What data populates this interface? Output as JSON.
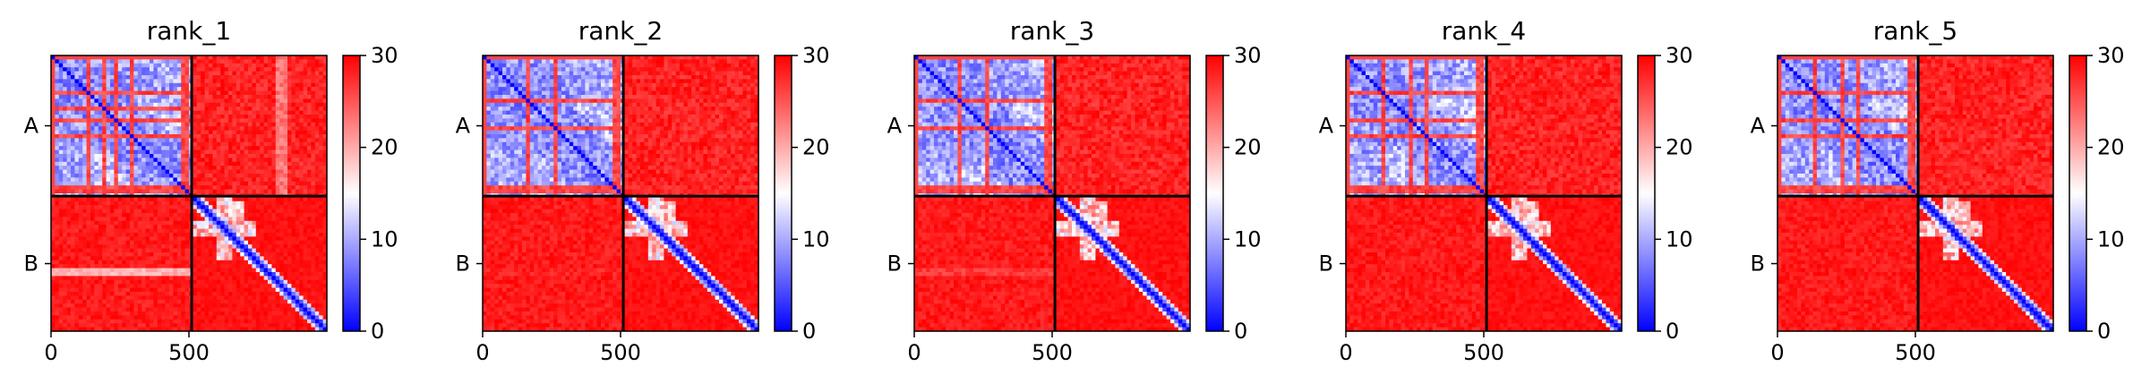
{
  "chart_data": [
    {
      "type": "heatmap",
      "title": "rank_1",
      "x_ticks": [
        "0",
        "500"
      ],
      "x_tick_values": [
        0,
        500
      ],
      "y_chains": [
        "A",
        "B"
      ],
      "xlim": [
        0,
        1000
      ],
      "ylim": [
        0,
        1000
      ],
      "chain_boundary": 510,
      "colorbar": {
        "min": 0,
        "max": 30,
        "ticks": [
          "0",
          "10",
          "20",
          "30"
        ],
        "tick_values": [
          0,
          10,
          20,
          30
        ],
        "colormap": "bwr"
      },
      "features": {
        "a_stripes": [
          0.25,
          0.36,
          0.45,
          0.56,
          0.93
        ],
        "off_diag_bands": [
          0.62,
          0.66
        ],
        "b_band_row": 0.55,
        "b_band_strength": 0.85
      }
    },
    {
      "type": "heatmap",
      "title": "rank_2",
      "x_ticks": [
        "0",
        "500"
      ],
      "x_tick_values": [
        0,
        500
      ],
      "y_chains": [
        "A",
        "B"
      ],
      "xlim": [
        0,
        1000
      ],
      "ylim": [
        0,
        1000
      ],
      "chain_boundary": 510,
      "colorbar": {
        "min": 0,
        "max": 30,
        "ticks": [
          "0",
          "10",
          "20",
          "30"
        ],
        "tick_values": [
          0,
          10,
          20,
          30
        ],
        "colormap": "bwr"
      },
      "features": {
        "a_stripes": [
          0.3,
          0.5,
          0.93
        ],
        "off_diag_bands": [],
        "b_band_row": 0.55,
        "b_band_strength": 0.25
      }
    },
    {
      "type": "heatmap",
      "title": "rank_3",
      "x_ticks": [
        "0",
        "500"
      ],
      "x_tick_values": [
        0,
        500
      ],
      "y_chains": [
        "A",
        "B"
      ],
      "xlim": [
        0,
        1000
      ],
      "ylim": [
        0,
        1000
      ],
      "chain_boundary": 510,
      "colorbar": {
        "min": 0,
        "max": 30,
        "ticks": [
          "0",
          "10",
          "20",
          "30"
        ],
        "tick_values": [
          0,
          10,
          20,
          30
        ],
        "colormap": "bwr"
      },
      "features": {
        "a_stripes": [
          0.3,
          0.5,
          0.93
        ],
        "off_diag_bands": [],
        "b_band_row": 0.55,
        "b_band_strength": 0.35
      }
    },
    {
      "type": "heatmap",
      "title": "rank_4",
      "x_ticks": [
        "0",
        "500"
      ],
      "x_tick_values": [
        0,
        500
      ],
      "y_chains": [
        "A",
        "B"
      ],
      "xlim": [
        0,
        1000
      ],
      "ylim": [
        0,
        1000
      ],
      "chain_boundary": 510,
      "colorbar": {
        "min": 0,
        "max": 30,
        "ticks": [
          "0",
          "10",
          "20",
          "30"
        ],
        "tick_values": [
          0,
          10,
          20,
          30
        ],
        "colormap": "bwr"
      },
      "features": {
        "a_stripes": [
          0.25,
          0.45,
          0.56,
          0.93
        ],
        "off_diag_bands": [],
        "b_band_row": 0.55,
        "b_band_strength": 0.2
      }
    },
    {
      "type": "heatmap",
      "title": "rank_5",
      "x_ticks": [
        "0",
        "500"
      ],
      "x_tick_values": [
        0,
        500
      ],
      "y_chains": [
        "A",
        "B"
      ],
      "xlim": [
        0,
        1000
      ],
      "ylim": [
        0,
        1000
      ],
      "chain_boundary": 510,
      "colorbar": {
        "min": 0,
        "max": 30,
        "ticks": [
          "0",
          "10",
          "20",
          "30"
        ],
        "tick_values": [
          0,
          10,
          20,
          30
        ],
        "colormap": "bwr"
      },
      "features": {
        "a_stripes": [
          0.25,
          0.45,
          0.56,
          0.93
        ],
        "off_diag_bands": [],
        "b_band_row": 0.55,
        "b_band_strength": 0.2
      }
    }
  ]
}
